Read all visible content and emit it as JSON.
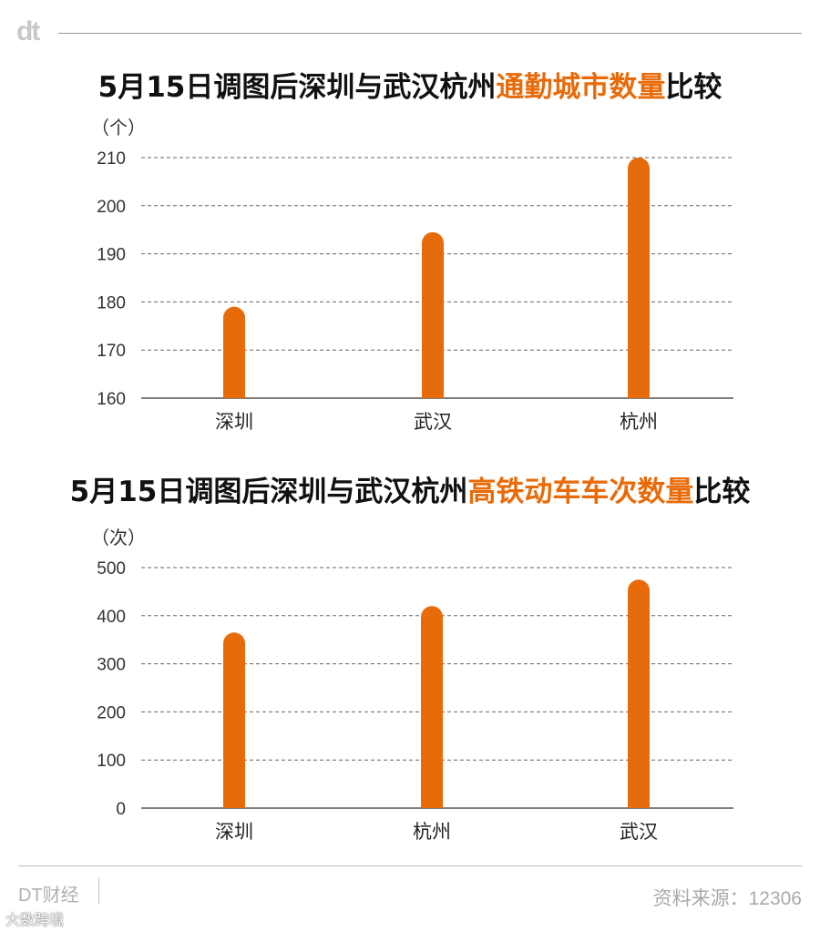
{
  "header": {
    "logo": "dt"
  },
  "chart_data": [
    {
      "type": "bar",
      "title_prefix": "5月15日调图后深圳与武汉杭州",
      "title_highlight": "通勤城市数量",
      "title_suffix": "比较",
      "unit": "（个）",
      "categories": [
        "深圳",
        "武汉",
        "杭州"
      ],
      "values": [
        179,
        194.5,
        210
      ],
      "ylim": [
        160,
        210
      ],
      "yticks": [
        160,
        170,
        180,
        190,
        200,
        210
      ],
      "grid": true,
      "bar_color": "#e86b0a"
    },
    {
      "type": "bar",
      "title_prefix": "5月15日调图后深圳与武汉杭州",
      "title_highlight": "高铁动车车次数量",
      "title_suffix": "比较",
      "unit": "（次）",
      "categories": [
        "深圳",
        "杭州",
        "武汉"
      ],
      "values": [
        365,
        420,
        475
      ],
      "ylim": [
        0,
        500
      ],
      "yticks": [
        0,
        100,
        200,
        300,
        400,
        500
      ],
      "grid": true,
      "bar_color": "#e86b0a"
    }
  ],
  "footer": {
    "brand": "DT财经",
    "source": "资料来源：12306",
    "watermark": "大数跨境"
  },
  "colors": {
    "accent": "#e86b0a",
    "text": "#111111",
    "muted": "#aaaaaa"
  }
}
